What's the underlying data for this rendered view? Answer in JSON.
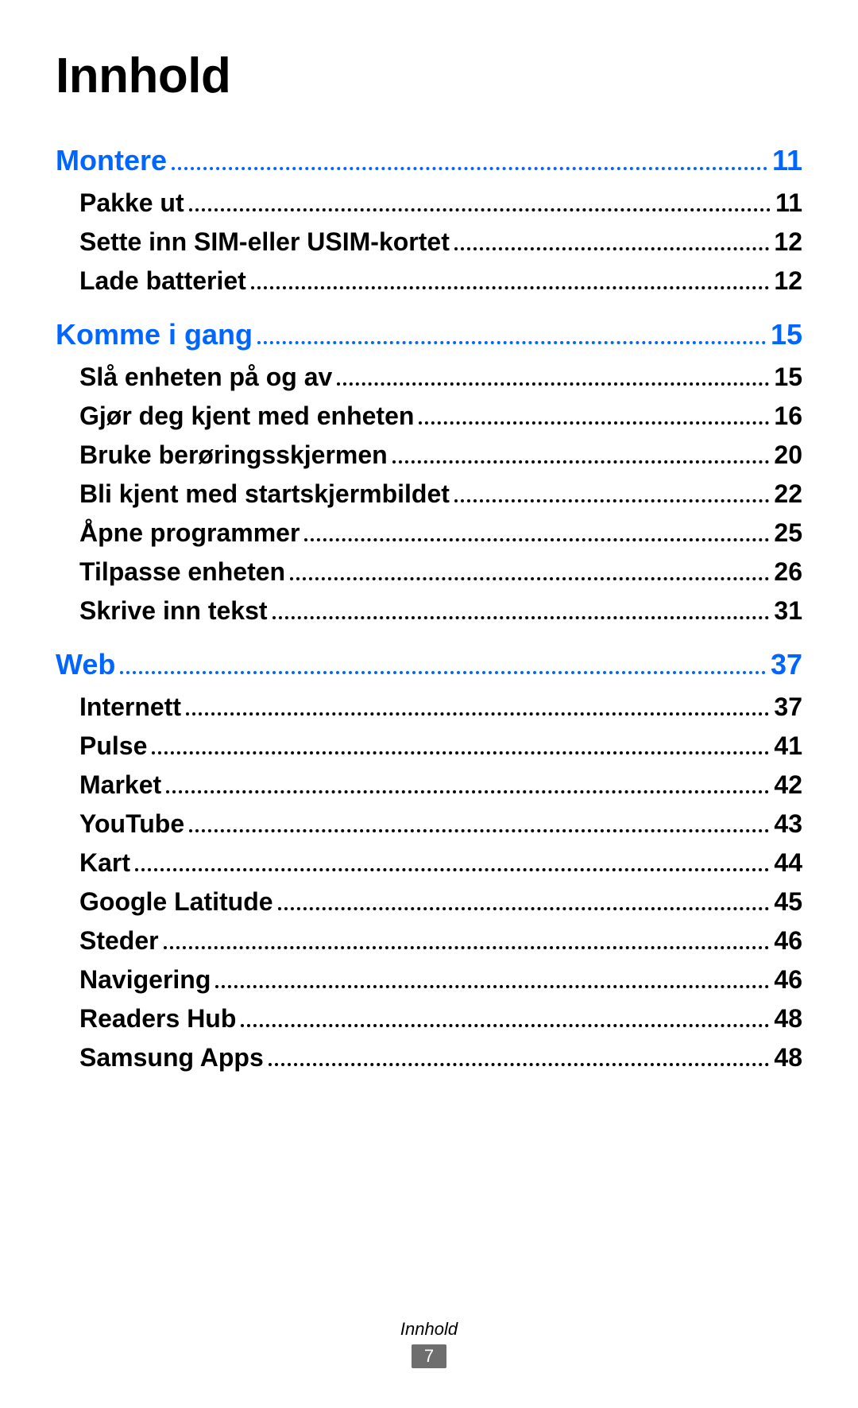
{
  "title": "Innhold",
  "section_color": "#0066ff",
  "text_color": "#000000",
  "title_fontsize": 62,
  "section_fontsize": 36,
  "sub_fontsize": 32,
  "sections": [
    {
      "label": "Montere",
      "page": "11",
      "items": [
        {
          "label": "Pakke ut",
          "page": "11"
        },
        {
          "label": "Sette inn SIM-eller USIM-kortet",
          "page": "12"
        },
        {
          "label": "Lade batteriet",
          "page": "12"
        }
      ]
    },
    {
      "label": "Komme i gang",
      "page": "15",
      "items": [
        {
          "label": "Slå enheten på og av",
          "page": "15"
        },
        {
          "label": "Gjør deg kjent med enheten",
          "page": "16"
        },
        {
          "label": "Bruke berøringsskjermen",
          "page": "20"
        },
        {
          "label": "Bli kjent med startskjermbildet",
          "page": "22"
        },
        {
          "label": "Åpne programmer",
          "page": "25"
        },
        {
          "label": "Tilpasse enheten",
          "page": "26"
        },
        {
          "label": "Skrive inn tekst",
          "page": "31"
        }
      ]
    },
    {
      "label": "Web",
      "page": "37",
      "items": [
        {
          "label": "Internett",
          "page": "37"
        },
        {
          "label": "Pulse",
          "page": "41"
        },
        {
          "label": "Market",
          "page": "42"
        },
        {
          "label": "YouTube",
          "page": "43"
        },
        {
          "label": "Kart",
          "page": "44"
        },
        {
          "label": "Google Latitude",
          "page": "45"
        },
        {
          "label": "Steder",
          "page": "46"
        },
        {
          "label": "Navigering",
          "page": "46"
        },
        {
          "label": "Readers Hub",
          "page": "48"
        },
        {
          "label": "Samsung Apps",
          "page": "48"
        }
      ]
    }
  ],
  "footer_text": "Innhold",
  "footer_page": "7",
  "footer_badge_bg": "#6e6e6e",
  "footer_badge_fg": "#ffffff"
}
